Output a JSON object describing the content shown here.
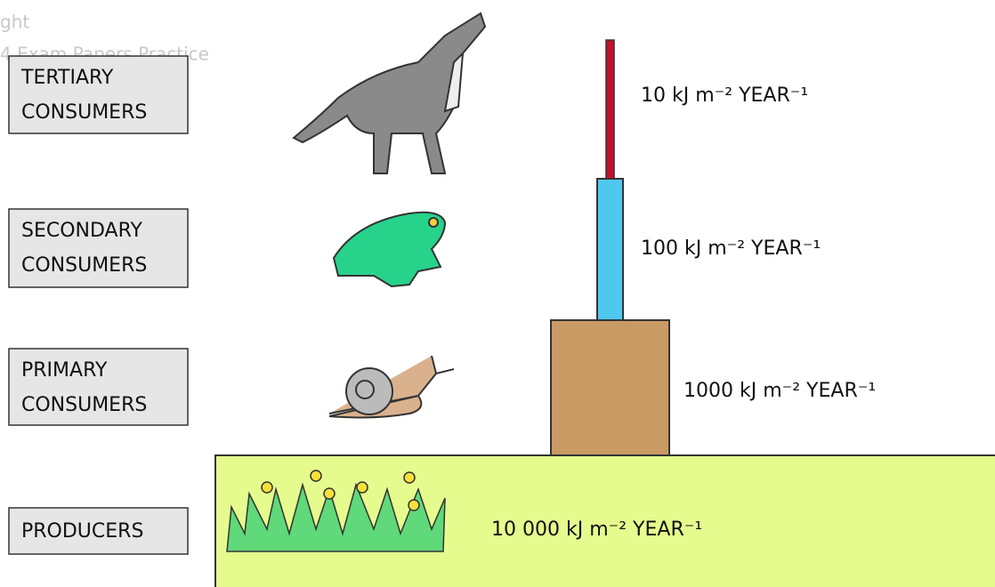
{
  "watermark": [
    "ght",
    "4 Exam Papers Practice"
  ],
  "levels": [
    {
      "name": [
        "TERTIARY",
        "CONSUMERS"
      ],
      "energy": "10 kJ m⁻² YEAR⁻¹"
    },
    {
      "name": [
        "SECONDARY",
        "CONSUMERS"
      ],
      "energy": "100 kJ m⁻² YEAR⁻¹"
    },
    {
      "name": [
        "PRIMARY",
        "CONSUMERS"
      ],
      "energy": "1000 kJ m⁻² YEAR⁻¹"
    },
    {
      "name": [
        "PRODUCERS"
      ],
      "energy": "10 000 kJ m⁻² YEAR⁻¹"
    }
  ]
}
